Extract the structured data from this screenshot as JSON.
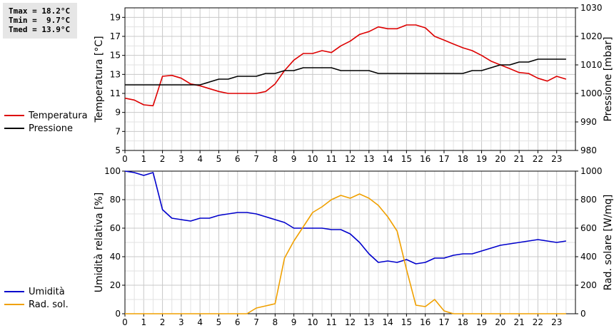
{
  "stats": {
    "tmax": "Tmax = 18.2°C",
    "tmin": "Tmin =  9.7°C",
    "tmed": "Tmed = 13.9°C"
  },
  "legends": {
    "top": [
      {
        "label": "Temperatura",
        "color": "#dd0000"
      },
      {
        "label": "Pressione",
        "color": "#000000"
      }
    ],
    "bottom": [
      {
        "label": "Umidità",
        "color": "#0000cc"
      },
      {
        "label": "Rad. sol.",
        "color": "#f0a000"
      }
    ]
  },
  "chart_data": [
    {
      "type": "line",
      "xlabel": "",
      "x_ticks": [
        "0",
        "1",
        "2",
        "3",
        "4",
        "5",
        "6",
        "7",
        "8",
        "9",
        "10",
        "11",
        "12",
        "13",
        "14",
        "15",
        "16",
        "17",
        "18",
        "19",
        "20",
        "21",
        "22",
        "23"
      ],
      "xlim": [
        0,
        24
      ],
      "ylabel": "Temperatura [°C]",
      "ylim": [
        5,
        20
      ],
      "y_ticks": [
        "5",
        "7",
        "9",
        "11",
        "13",
        "15",
        "17",
        "19"
      ],
      "y2label": "Pressione [mbar]",
      "y2lim": [
        980,
        1030
      ],
      "y2_ticks": [
        "980",
        "990",
        "1000",
        "1010",
        "1020",
        "1030"
      ],
      "grid": true,
      "series": [
        {
          "name": "Temperatura",
          "axis": "left",
          "color": "#dd0000",
          "x": [
            0,
            0.5,
            1,
            1.5,
            2,
            2.5,
            3,
            3.5,
            4,
            4.5,
            5,
            5.5,
            6,
            6.5,
            7,
            7.5,
            8,
            8.5,
            9,
            9.5,
            10,
            10.5,
            11,
            11.5,
            12,
            12.5,
            13,
            13.5,
            14,
            14.5,
            15,
            15.5,
            16,
            16.5,
            17,
            17.5,
            18,
            18.5,
            19,
            19.5,
            20,
            20.5,
            21,
            21.5,
            22,
            22.5,
            23,
            23.5
          ],
          "y": [
            10.5,
            10.3,
            9.8,
            9.7,
            12.8,
            12.9,
            12.6,
            12.0,
            11.8,
            11.5,
            11.2,
            11.0,
            11.0,
            11.0,
            11.0,
            11.2,
            12.0,
            13.4,
            14.5,
            15.2,
            15.2,
            15.5,
            15.3,
            16.0,
            16.5,
            17.2,
            17.5,
            18.0,
            17.8,
            17.8,
            18.2,
            18.2,
            17.9,
            17.0,
            16.6,
            16.2,
            15.8,
            15.5,
            15.0,
            14.4,
            14.0,
            13.6,
            13.2,
            13.1,
            12.6,
            12.3,
            12.8,
            12.5
          ]
        },
        {
          "name": "Pressione",
          "axis": "right",
          "color": "#000000",
          "x": [
            0,
            0.5,
            1,
            1.5,
            2,
            2.5,
            3,
            3.5,
            4,
            4.5,
            5,
            5.5,
            6,
            6.5,
            7,
            7.5,
            8,
            8.5,
            9,
            9.5,
            10,
            10.5,
            11,
            11.5,
            12,
            12.5,
            13,
            13.5,
            14,
            14.5,
            15,
            15.5,
            16,
            16.5,
            17,
            17.5,
            18,
            18.5,
            19,
            19.5,
            20,
            20.5,
            21,
            21.5,
            22,
            22.5,
            23,
            23.5
          ],
          "y": [
            1003,
            1003,
            1003,
            1003,
            1003,
            1003,
            1003,
            1003,
            1003,
            1004,
            1005,
            1005,
            1006,
            1006,
            1006,
            1007,
            1007,
            1008,
            1008,
            1009,
            1009,
            1009,
            1009,
            1008,
            1008,
            1008,
            1008,
            1007,
            1007,
            1007,
            1007,
            1007,
            1007,
            1007,
            1007,
            1007,
            1007,
            1008,
            1008,
            1009,
            1010,
            1010,
            1011,
            1011,
            1012,
            1012,
            1012,
            1012
          ]
        }
      ]
    },
    {
      "type": "line",
      "xlabel": "",
      "x_ticks": [
        "0",
        "1",
        "2",
        "3",
        "4",
        "5",
        "6",
        "7",
        "8",
        "9",
        "10",
        "11",
        "12",
        "13",
        "14",
        "15",
        "16",
        "17",
        "18",
        "19",
        "20",
        "21",
        "22",
        "23"
      ],
      "xlim": [
        0,
        24
      ],
      "ylabel": "Umidità relativa [%]",
      "ylim": [
        0,
        100
      ],
      "y_ticks": [
        "0",
        "20",
        "40",
        "60",
        "80",
        "100"
      ],
      "y2label": "Rad. solare [W/mq]",
      "y2lim": [
        0,
        1000
      ],
      "y2_ticks": [
        "0",
        "200",
        "400",
        "600",
        "800",
        "1000"
      ],
      "grid": true,
      "series": [
        {
          "name": "Umidità",
          "axis": "left",
          "color": "#0000cc",
          "x": [
            0,
            0.5,
            1,
            1.5,
            2,
            2.5,
            3,
            3.5,
            4,
            4.5,
            5,
            5.5,
            6,
            6.5,
            7,
            7.5,
            8,
            8.5,
            9,
            9.5,
            10,
            10.5,
            11,
            11.5,
            12,
            12.5,
            13,
            13.5,
            14,
            14.5,
            15,
            15.5,
            16,
            16.5,
            17,
            17.5,
            18,
            18.5,
            19,
            19.5,
            20,
            20.5,
            21,
            21.5,
            22,
            22.5,
            23,
            23.5
          ],
          "y": [
            100,
            99,
            97,
            99,
            73,
            67,
            66,
            65,
            67,
            67,
            69,
            70,
            71,
            71,
            70,
            68,
            66,
            64,
            60,
            60,
            60,
            60,
            59,
            59,
            56,
            50,
            42,
            36,
            37,
            36,
            38,
            35,
            36,
            39,
            39,
            41,
            42,
            42,
            44,
            46,
            48,
            49,
            50,
            51,
            52,
            51,
            50,
            51
          ]
        },
        {
          "name": "Rad. sol.",
          "axis": "right",
          "color": "#f0a000",
          "x": [
            0,
            0.5,
            1,
            1.5,
            2,
            2.5,
            3,
            3.5,
            4,
            4.5,
            5,
            5.5,
            6,
            6.5,
            7,
            7.5,
            8,
            8.5,
            9,
            9.5,
            10,
            10.5,
            11,
            11.5,
            12,
            12.5,
            13,
            13.5,
            14,
            14.5,
            15,
            15.5,
            16,
            16.5,
            17,
            17.5,
            18,
            18.5,
            19,
            19.5,
            20,
            20.5,
            21,
            21.5,
            22,
            22.5,
            23,
            23.5
          ],
          "y": [
            0,
            0,
            0,
            0,
            0,
            0,
            0,
            0,
            0,
            0,
            0,
            0,
            0,
            0,
            40,
            55,
            70,
            390,
            510,
            610,
            710,
            750,
            800,
            830,
            810,
            840,
            810,
            760,
            680,
            580,
            310,
            60,
            50,
            100,
            20,
            0,
            0,
            0,
            0,
            0,
            0,
            0,
            0,
            0,
            0,
            0,
            0,
            0
          ]
        }
      ]
    }
  ]
}
